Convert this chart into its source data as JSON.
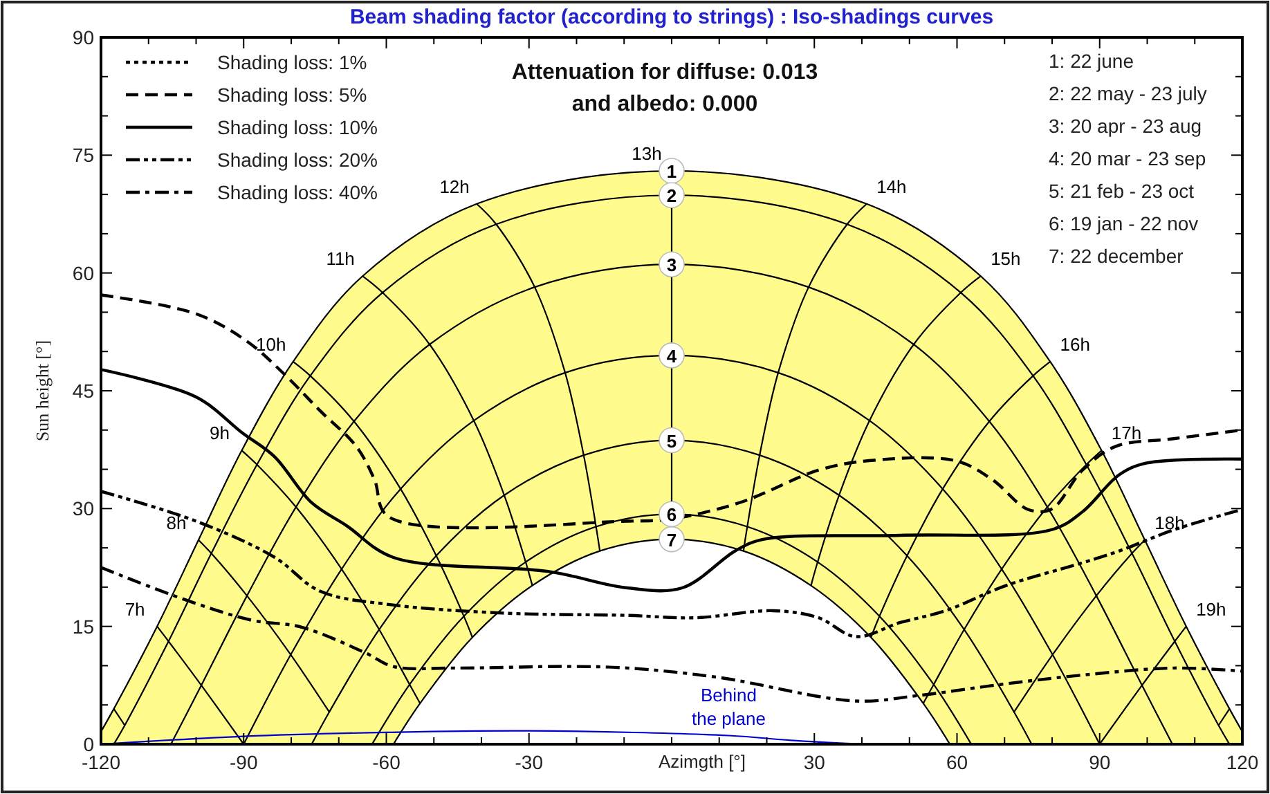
{
  "chart_data": {
    "type": "line",
    "title": "Beam shading factor (according to strings) : Iso-shadings curves",
    "xlabel": "Azimgth [°]",
    "ylabel": "Sun height [°]",
    "xlim": [
      -120,
      120
    ],
    "ylim": [
      0,
      90
    ],
    "xticks": [
      -120,
      {
        "value": -110,
        "label": null
      },
      {
        "value": -100,
        "label": null
      },
      -90,
      {
        "value": -80,
        "label": null
      },
      {
        "value": -70,
        "label": null
      },
      -60,
      {
        "value": -50,
        "label": null
      },
      {
        "value": -40,
        "label": null
      },
      -30,
      {
        "value": -20,
        "label": null
      },
      {
        "value": -10,
        "label": null
      },
      {
        "value": 0,
        "label": null
      },
      {
        "value": 10,
        "label": null
      },
      {
        "value": 20,
        "label": null
      },
      30,
      {
        "value": 40,
        "label": null
      },
      {
        "value": 50,
        "label": null
      },
      60,
      {
        "value": 70,
        "label": null
      },
      {
        "value": 80,
        "label": null
      },
      90,
      {
        "value": 100,
        "label": null
      },
      {
        "value": 110,
        "label": null
      },
      120
    ],
    "yticks": [
      0,
      {
        "value": 5,
        "label": null
      },
      {
        "value": 10,
        "label": null
      },
      15,
      {
        "value": 20,
        "label": null
      },
      {
        "value": 25,
        "label": null
      },
      30,
      {
        "value": 35,
        "label": null
      },
      {
        "value": 40,
        "label": null
      },
      45,
      {
        "value": 50,
        "label": null
      },
      {
        "value": 55,
        "label": null
      },
      60,
      {
        "value": 65,
        "label": null
      },
      {
        "value": 70,
        "label": null
      },
      75,
      {
        "value": 80,
        "label": null
      },
      {
        "value": 85,
        "label": null
      },
      90
    ],
    "grid": false,
    "legend": "top left",
    "annotations": [
      "Attenuation for diffuse: 0.013",
      "and albedo: 0.000",
      "1: 22 june",
      "2: 22 may - 23 july",
      "3: 20 apr - 23 aug",
      "4: 20 mar - 23 sep",
      "5: 21 feb - 23 oct",
      "6: 19 jan - 22 nov",
      "7: 22 december",
      {
        "text": "Behind the plane",
        "x": 12,
        "y": 1.1
      }
    ],
    "series": [
      {
        "type": "area",
        "color": "#fffb8c"
      },
      {
        "name": "1",
        "color": "#000000",
        "x": [
          -120,
          -117.3,
          -108.2,
          -99.5,
          -90.4,
          -79.6,
          -65,
          -41,
          0,
          41,
          65,
          79.6,
          90.4,
          99.5,
          108.2,
          117.3,
          120
        ],
        "values": [
          1.6,
          4.5,
          15,
          26,
          37.4,
          48.7,
          59.6,
          68.8,
          73,
          68.8,
          59.6,
          48.7,
          37.4,
          26,
          15,
          4.5,
          1.6
        ]
      },
      {
        "name": "2",
        "color": "#000000",
        "x": [
          -117.3,
          -115,
          -105.8,
          -96.8,
          -87.2,
          -76,
          -60.8,
          -36.9,
          0,
          36.9,
          60.8,
          76,
          87.2,
          96.8,
          105.8,
          115,
          117.3
        ],
        "values": [
          0,
          2.4,
          13.1,
          24.3,
          35.6,
          46.9,
          57.5,
          66.2,
          69.9,
          66.2,
          57.5,
          46.9,
          35.6,
          24.3,
          13.1,
          2.4,
          0
        ]
      },
      {
        "name": "3",
        "color": "#000000",
        "x": [
          -105.3,
          -98.9,
          -89.3,
          -79,
          -66.8,
          -50.9,
          -28.8,
          0,
          28.8,
          50.9,
          66.8,
          79,
          89.3,
          98.9,
          105.3
        ],
        "values": [
          0,
          7.5,
          18.9,
          30.2,
          41.1,
          50.9,
          58.2,
          61.1,
          58.2,
          50.9,
          41.1,
          30.2,
          18.9,
          7.5,
          0
        ]
      },
      {
        "name": "4",
        "color": "#000000",
        "x": [
          -90,
          -80.1,
          -69.4,
          -57,
          -41.6,
          -22.4,
          0,
          22.4,
          41.6,
          57,
          69.4,
          80.1,
          90
        ],
        "values": [
          0,
          11.4,
          22.3,
          32.5,
          41.2,
          47.3,
          49.5,
          47.3,
          41.2,
          32.5,
          22.3,
          11.4,
          0
        ]
      },
      {
        "name": "5",
        "color": "#000000",
        "x": [
          -75.7,
          -72,
          -61.5,
          -49.5,
          -35.2,
          -18.5,
          0,
          18.5,
          35.2,
          49.5,
          61.5,
          72,
          75.7
        ],
        "values": [
          0,
          4.1,
          14.6,
          24,
          31.7,
          36.8,
          38.7,
          36.8,
          31.7,
          24,
          14.6,
          4.1,
          0
        ]
      },
      {
        "name": "6",
        "color": "#000000",
        "x": [
          -63,
          -55.1,
          -43.7,
          -30.7,
          -15.9,
          0,
          15.9,
          30.7,
          43.7,
          55.1,
          63
        ],
        "values": [
          0,
          7.6,
          16.3,
          23.2,
          27.7,
          29.3,
          27.7,
          23.2,
          16.3,
          7.6,
          0
        ]
      },
      {
        "name": "7",
        "color": "#000000",
        "x": [
          -58.5,
          -52.9,
          -41.9,
          -29.3,
          -15.1,
          0,
          15.1,
          29.3,
          41.9,
          52.9,
          58.5
        ],
        "values": [
          0,
          5.2,
          13.6,
          20.2,
          24.6,
          26.1,
          24.6,
          20.2,
          13.6,
          5.2,
          0
        ]
      },
      {
        "color": "#000000",
        "x": [
          -117.3,
          -115
        ],
        "values": [
          4.5,
          2.4
        ]
      },
      {
        "name": "7h",
        "color": "#000000",
        "x": [
          -108.2,
          -105.8,
          -98.9,
          -90
        ],
        "values": [
          15,
          13.1,
          7.5,
          0
        ]
      },
      {
        "name": "8h",
        "color": "#000000",
        "x": [
          -99.5,
          -96.8,
          -89.3,
          -80.1,
          -72
        ],
        "values": [
          26,
          24.3,
          18.9,
          11.4,
          4.1
        ]
      },
      {
        "name": "9h",
        "color": "#000000",
        "x": [
          -90.4,
          -87.2,
          -79,
          -69.4,
          -61.5,
          -55.1,
          -52.9
        ],
        "values": [
          37.4,
          35.6,
          30.2,
          22.3,
          14.6,
          7.6,
          5.2
        ]
      },
      {
        "name": "10h",
        "color": "#000000",
        "x": [
          -79.6,
          -76,
          -66.8,
          -57,
          -49.5,
          -43.7,
          -41.9
        ],
        "values": [
          48.7,
          46.9,
          41.1,
          32.5,
          24,
          16.3,
          13.6
        ]
      },
      {
        "name": "11h",
        "color": "#000000",
        "x": [
          -65,
          -60.8,
          -50.9,
          -41.6,
          -35.2,
          -30.7,
          -29.3
        ],
        "values": [
          59.6,
          57.5,
          50.9,
          41.2,
          31.7,
          23.2,
          20.2
        ]
      },
      {
        "name": "12h",
        "color": "#000000",
        "x": [
          -41,
          -36.9,
          -28.8,
          -22.4,
          -18.5,
          -15.9,
          -15.1
        ],
        "values": [
          68.8,
          66.2,
          58.2,
          47.3,
          36.8,
          27.7,
          24.6
        ]
      },
      {
        "name": "13h",
        "color": "#000000",
        "x": [
          0,
          0,
          0,
          0,
          0,
          0,
          0
        ],
        "values": [
          73,
          69.9,
          61.1,
          49.5,
          38.7,
          29.3,
          26.1
        ]
      },
      {
        "name": "14h",
        "color": "#000000",
        "x": [
          41,
          36.9,
          28.8,
          22.4,
          18.5,
          15.9,
          15.1
        ],
        "values": [
          68.8,
          66.2,
          58.2,
          47.3,
          36.8,
          27.7,
          24.6
        ]
      },
      {
        "name": "15h",
        "color": "#000000",
        "x": [
          65,
          60.8,
          50.9,
          41.6,
          35.2,
          30.7,
          29.3
        ],
        "values": [
          59.6,
          57.5,
          50.9,
          41.2,
          31.7,
          23.2,
          20.2
        ]
      },
      {
        "name": "16h",
        "color": "#000000",
        "x": [
          79.6,
          76,
          66.8,
          57,
          49.5,
          43.7,
          41.9
        ],
        "values": [
          48.7,
          46.9,
          41.1,
          32.5,
          24,
          16.3,
          13.6
        ]
      },
      {
        "name": "17h",
        "color": "#000000",
        "x": [
          90.4,
          87.2,
          79,
          69.4,
          61.5,
          55.1,
          52.9
        ],
        "values": [
          37.4,
          35.6,
          30.2,
          22.3,
          14.6,
          7.6,
          5.2
        ]
      },
      {
        "name": "18h",
        "color": "#000000",
        "x": [
          99.5,
          96.8,
          89.3,
          80.1,
          72
        ],
        "values": [
          26,
          24.3,
          18.9,
          11.4,
          4.1
        ]
      },
      {
        "name": "19h",
        "color": "#000000",
        "x": [
          108.2,
          105.8,
          98.9,
          90
        ],
        "values": [
          15,
          13.1,
          7.5,
          0
        ]
      },
      {
        "color": "#000000",
        "x": [
          117.3,
          115
        ],
        "values": [
          4.5,
          2.4
        ]
      },
      {
        "color": "#0000cc",
        "x": [
          -120,
          -90,
          -60,
          -30,
          12,
          25,
          40
        ],
        "values": [
          0,
          1,
          1.5,
          1.7,
          1.1,
          0.5,
          0
        ]
      },
      {
        "name": "Shading loss: 1%",
        "color": "#000000",
        "line_style": "dotted"
      },
      {
        "name": "Shading loss: 5%",
        "color": "#000000",
        "line_style": "dashed",
        "x": [
          -120,
          -100,
          -89.3,
          -81.6,
          -74,
          -66.3,
          -62.5,
          -59.6,
          -9.3,
          0.1,
          14.5,
          30.9,
          41.5,
          59.6,
          67.4,
          74.9,
          79.8,
          86.4,
          93.3,
          105.6,
          120
        ],
        "values": [
          57.2,
          54.8,
          51.3,
          47.2,
          42.5,
          37.9,
          33.7,
          29,
          28.4,
          28.7,
          30.8,
          34.9,
          36.1,
          36.1,
          33.7,
          29.9,
          29.9,
          34.9,
          37.9,
          38.9,
          40
        ]
      },
      {
        "name": "Shading loss: 10%",
        "color": "#000000",
        "line_style": "solid",
        "x": [
          -120,
          -100,
          -90.2,
          -83.5,
          -75.8,
          -68.3,
          -58.6,
          -26,
          -9.3,
          2.2,
          13.6,
          19.4,
          48.1,
          79.8,
          86.4,
          94.1,
          99.9,
          120
        ],
        "values": [
          47.7,
          44.2,
          39.6,
          36.6,
          30.8,
          27.8,
          23.8,
          22,
          19.9,
          19.9,
          24.7,
          26.1,
          26.6,
          27.3,
          29.6,
          34.3,
          35.8,
          36.3
        ]
      },
      {
        "name": "Shading loss: 20%",
        "color": "#000000",
        "line_style": "dashdotdot",
        "x": [
          -120,
          -100,
          -83.5,
          -74,
          -59.6,
          -35.6,
          -9.3,
          5,
          21.4,
          30.9,
          38.7,
          48.1,
          57.6,
          70.3,
          86.4,
          94.1,
          105.6,
          120
        ],
        "values": [
          32.2,
          28.4,
          23.8,
          19.5,
          17.8,
          16.7,
          16.4,
          16.1,
          17,
          16.1,
          13.7,
          15.5,
          17,
          20.2,
          23.1,
          24.6,
          27.3,
          29.9
        ]
      },
      {
        "name": "Shading loss: 40%",
        "color": "#000000",
        "line_style": "dashdot",
        "x": [
          -120,
          -102.8,
          -88.4,
          -77.8,
          -64.3,
          -58.6,
          -45.2,
          -22.2,
          -9.3,
          9.9,
          38.7,
          51.9,
          69.1,
          86.4,
          105.6,
          120
        ],
        "values": [
          22.5,
          18.5,
          15.8,
          14.9,
          11.6,
          9.9,
          9.7,
          9.9,
          9.7,
          8.5,
          5.5,
          6.2,
          7.6,
          8.8,
          9.7,
          9.3
        ]
      }
    ]
  }
}
